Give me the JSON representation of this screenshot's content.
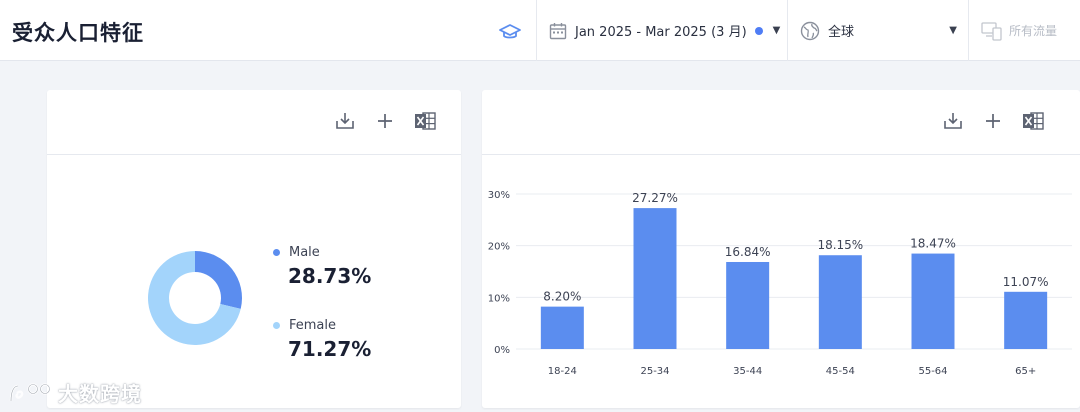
{
  "header": {
    "title": "受众人口特征",
    "date_range": "Jan 2025 - Mar 2025 (3 月)",
    "region": "全球",
    "traffic": "所有流量"
  },
  "colors": {
    "accent": "#5b8def",
    "male": "#5b8def",
    "female": "#a3d4fb",
    "bar": "#5b8def"
  },
  "gender": {
    "male_label": "Male",
    "male_value": "28.73%",
    "female_label": "Female",
    "female_value": "71.27%"
  },
  "chart_data": [
    {
      "type": "pie",
      "categories": [
        "Male",
        "Female"
      ],
      "values": [
        28.73,
        71.27
      ]
    },
    {
      "type": "bar",
      "categories": [
        "18-24",
        "25-34",
        "35-44",
        "45-54",
        "55-64",
        "65+"
      ],
      "values": [
        8.2,
        27.27,
        16.84,
        18.15,
        18.47,
        11.07
      ],
      "data_labels": [
        "8.20%",
        "27.27%",
        "16.84%",
        "18.15%",
        "18.47%",
        "11.07%"
      ],
      "yticks": [
        "0%",
        "10%",
        "20%",
        "30%"
      ],
      "ylim": [
        0,
        30
      ],
      "grid": true
    }
  ],
  "watermark": "大数跨境"
}
